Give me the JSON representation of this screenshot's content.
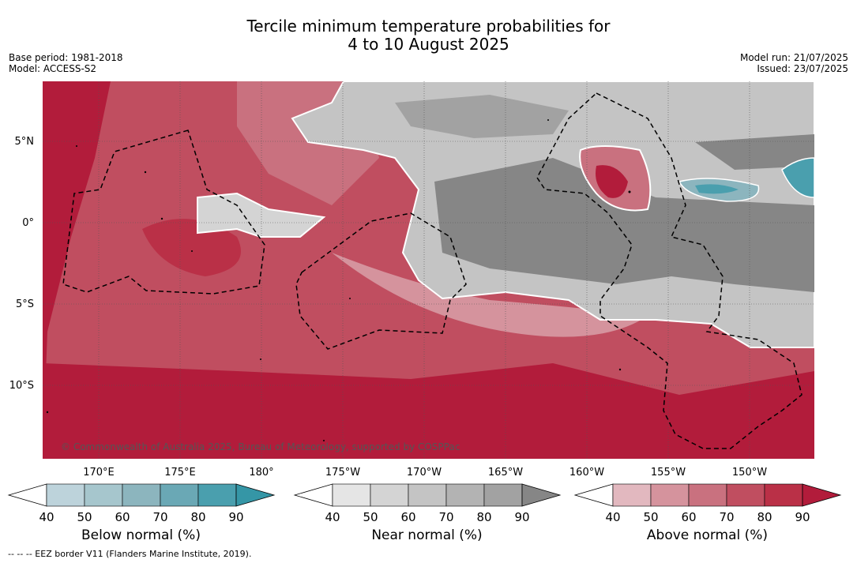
{
  "title_line1": "Tercile minimum temperature probabilities for",
  "title_line2": "4 to 10 August 2025",
  "meta_left": [
    "Base period: 1981-2018",
    "Model: ACCESS-S2"
  ],
  "meta_right": [
    "Model run: 21/07/2025",
    "Issued: 23/07/2025"
  ],
  "copyright": "© Commonwealth of Australia 2025, Bureau of Meteorology, supported by COSPPac",
  "lat_labels": [
    "5°N",
    "0°",
    "5°S",
    "10°S"
  ],
  "lon_labels": [
    "170°E",
    "175°E",
    "180°",
    "175°W",
    "170°W",
    "165°W",
    "160°W",
    "155°W",
    "150°W"
  ],
  "colorbars": [
    {
      "title": "Below normal (%)",
      "ticks": [
        "40",
        "50",
        "60",
        "70",
        "80",
        "90"
      ],
      "colors": [
        "#ffffff",
        "#bdd3db",
        "#a6c6cd",
        "#8cb5be",
        "#6aa8b5",
        "#4a9fae",
        "#3596a6"
      ]
    },
    {
      "title": "Near normal (%)",
      "ticks": [
        "40",
        "50",
        "60",
        "70",
        "80",
        "90"
      ],
      "colors": [
        "#ffffff",
        "#e5e5e5",
        "#d4d4d4",
        "#c4c4c4",
        "#b3b3b3",
        "#a2a2a2",
        "#868686"
      ]
    },
    {
      "title": "Above normal (%)",
      "ticks": [
        "40",
        "50",
        "60",
        "70",
        "80",
        "90"
      ],
      "colors": [
        "#ffffff",
        "#e2b8bf",
        "#d5939d",
        "#c9717f",
        "#c04e60",
        "#ba3047",
        "#b21c3b"
      ]
    }
  ],
  "footer": "--  --  -- EEZ border V11 (Flanders Marine Institute, 2019)."
}
